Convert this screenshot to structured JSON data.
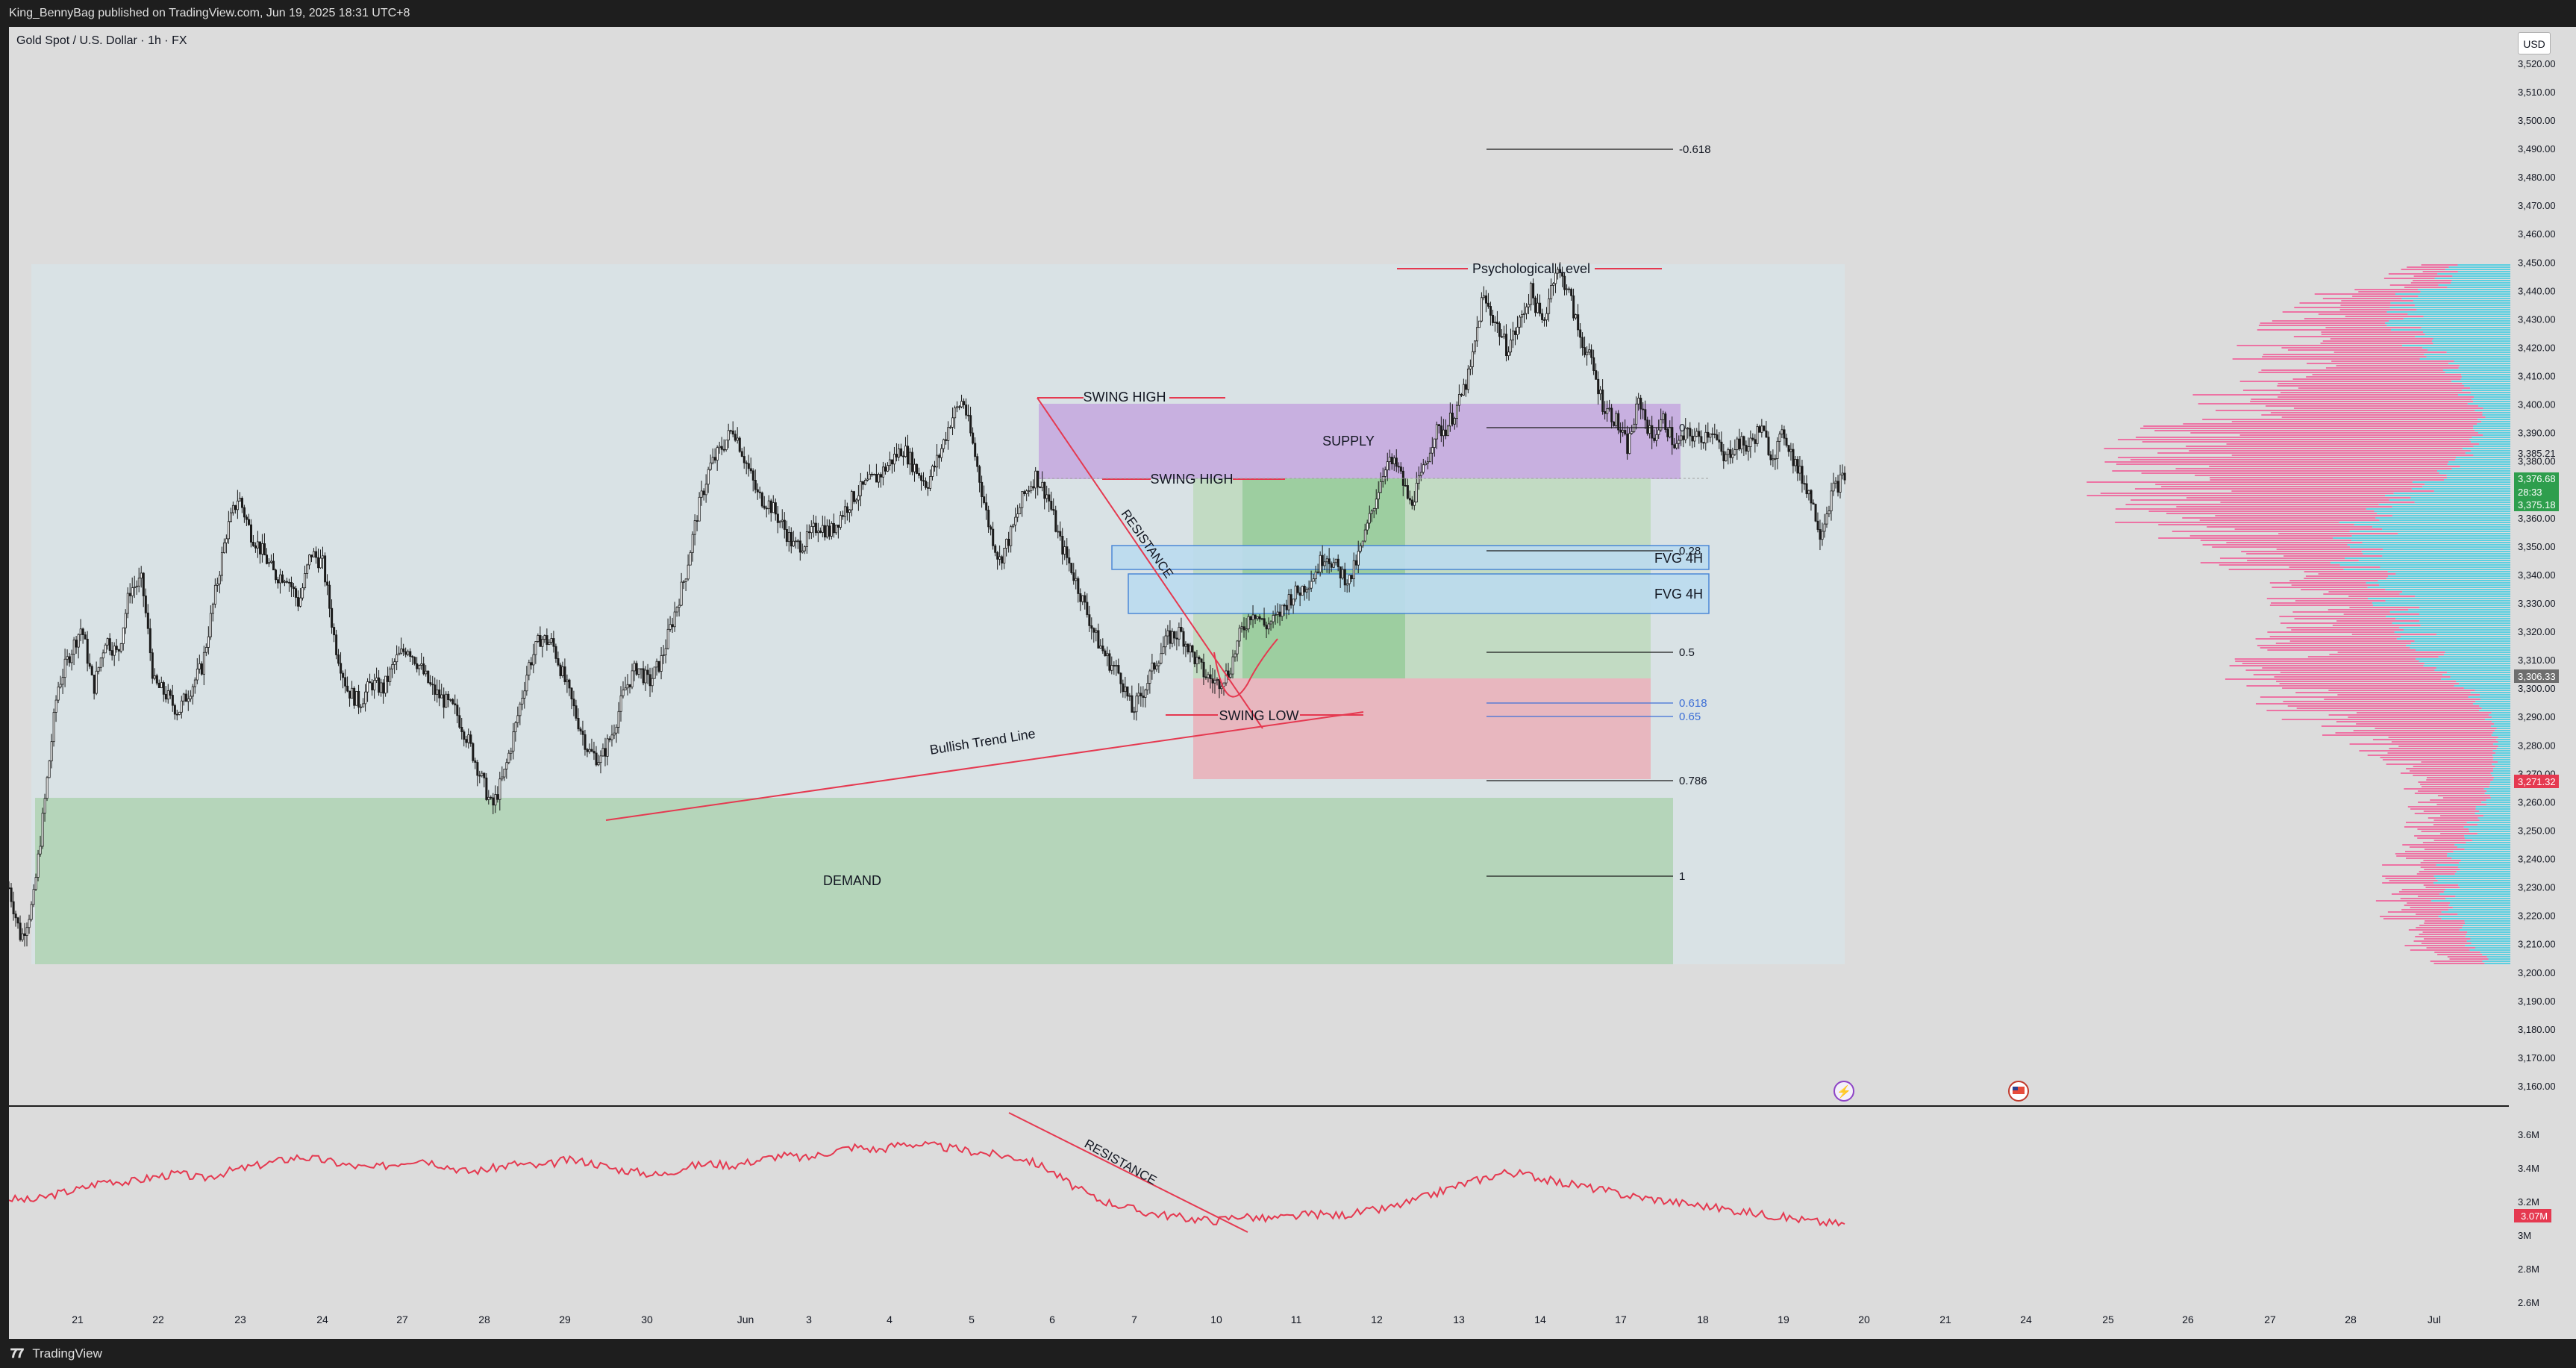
{
  "header": {
    "publish_line": "King_BennyBag published on TradingView.com, Jun 19, 2025 18:31 UTC+8",
    "symbol": "Gold Spot / U.S. Dollar · 1h · FX",
    "currency_button": "USD"
  },
  "footer": {
    "logo_mark": "𝟕𝟕",
    "logo_text": "TradingView"
  },
  "colors": {
    "candle": "#1a1a1a",
    "trend": "#e53950",
    "supply": "#c8b0e0",
    "demand": "#b5d5ba",
    "fvg_fill": "#bcdcef",
    "fvg_border": "#3d7fd6",
    "profile_pink": "#f0609a",
    "profile_cyan": "#45cde0",
    "fib_blue": "#3d6fd6",
    "obv_line": "#e53950",
    "price_badge": "#2e9e4d",
    "low_badge": "#e53950"
  },
  "chart_data": [
    {
      "type": "line",
      "subtype": "candlestick",
      "title": "Gold Spot / U.S. Dollar · 1h · FX",
      "ylim": [
        3155,
        3530
      ],
      "y_ticks": [
        "3,520.00",
        "3,510.00",
        "3,500.00",
        "3,490.00",
        "3,480.00",
        "3,470.00",
        "3,460.00",
        "3,450.00",
        "3,440.00",
        "3,430.00",
        "3,420.00",
        "3,410.00",
        "3,400.00",
        "3,390.00",
        "3,380.00",
        "3,370.00",
        "3,360.00",
        "3,350.00",
        "3,340.00",
        "3,330.00",
        "3,320.00",
        "3,310.00",
        "3,300.00",
        "3,290.00",
        "3,280.00",
        "3,270.00",
        "3,260.00",
        "3,250.00",
        "3,240.00",
        "3,230.00",
        "3,220.00",
        "3,210.00",
        "3,200.00",
        "3,190.00",
        "3,180.00",
        "3,170.00",
        "3,160.00"
      ],
      "x_ticks": [
        "21",
        "22",
        "23",
        "24",
        "27",
        "28",
        "29",
        "30",
        "Jun",
        "3",
        "4",
        "5",
        "6",
        "7",
        "10",
        "11",
        "12",
        "13",
        "14",
        "17",
        "18",
        "19",
        "20",
        "21",
        "24",
        "25",
        "26",
        "27",
        "28",
        "Jul"
      ],
      "price_path": [
        [
          0,
          3230
        ],
        [
          1,
          3212
        ],
        [
          2,
          3225
        ],
        [
          3,
          3262
        ],
        [
          4,
          3300
        ],
        [
          5,
          3312
        ],
        [
          6,
          3322
        ],
        [
          7,
          3300
        ],
        [
          8,
          3318
        ],
        [
          9,
          3312
        ],
        [
          10,
          3335
        ],
        [
          11,
          3338
        ],
        [
          12,
          3302
        ],
        [
          13,
          3298
        ],
        [
          14,
          3292
        ],
        [
          15,
          3300
        ],
        [
          16,
          3308
        ],
        [
          17,
          3332
        ],
        [
          18,
          3355
        ],
        [
          19,
          3368
        ],
        [
          20,
          3355
        ],
        [
          21,
          3348
        ],
        [
          22,
          3340
        ],
        [
          23,
          3340
        ],
        [
          24,
          3330
        ],
        [
          25,
          3348
        ],
        [
          26,
          3344
        ],
        [
          27,
          3316
        ],
        [
          28,
          3300
        ],
        [
          29,
          3295
        ],
        [
          30,
          3302
        ],
        [
          31,
          3300
        ],
        [
          32,
          3310
        ],
        [
          33,
          3315
        ],
        [
          34,
          3308
        ],
        [
          35,
          3300
        ],
        [
          36,
          3296
        ],
        [
          37,
          3292
        ],
        [
          38,
          3282
        ],
        [
          39,
          3270
        ],
        [
          40,
          3258
        ],
        [
          41,
          3270
        ],
        [
          42,
          3288
        ],
        [
          43,
          3308
        ],
        [
          44,
          3318
        ],
        [
          45,
          3316
        ],
        [
          46,
          3303
        ],
        [
          47,
          3290
        ],
        [
          48,
          3278
        ],
        [
          49,
          3275
        ],
        [
          50,
          3285
        ],
        [
          51,
          3300
        ],
        [
          52,
          3308
        ],
        [
          53,
          3302
        ],
        [
          54,
          3310
        ],
        [
          55,
          3325
        ],
        [
          56,
          3340
        ],
        [
          57,
          3362
        ],
        [
          58,
          3378
        ],
        [
          59,
          3385
        ],
        [
          60,
          3392
        ],
        [
          61,
          3380
        ],
        [
          62,
          3368
        ],
        [
          63,
          3365
        ],
        [
          64,
          3358
        ],
        [
          65,
          3350
        ],
        [
          66,
          3352
        ],
        [
          67,
          3358
        ],
        [
          68,
          3355
        ],
        [
          69,
          3362
        ],
        [
          70,
          3368
        ],
        [
          71,
          3372
        ],
        [
          72,
          3375
        ],
        [
          73,
          3380
        ],
        [
          74,
          3385
        ],
        [
          75,
          3378
        ],
        [
          76,
          3372
        ],
        [
          77,
          3382
        ],
        [
          78,
          3395
        ],
        [
          79,
          3402
        ],
        [
          80,
          3382
        ],
        [
          81,
          3360
        ],
        [
          82,
          3345
        ],
        [
          83,
          3355
        ],
        [
          84,
          3368
        ],
        [
          85,
          3375
        ],
        [
          86,
          3368
        ],
        [
          87,
          3352
        ],
        [
          88,
          3342
        ],
        [
          89,
          3330
        ],
        [
          90,
          3318
        ],
        [
          91,
          3310
        ],
        [
          92,
          3305
        ],
        [
          93,
          3292
        ],
        [
          94,
          3300
        ],
        [
          95,
          3310
        ],
        [
          96,
          3318
        ],
        [
          97,
          3320
        ],
        [
          98,
          3312
        ],
        [
          99,
          3305
        ],
        [
          100,
          3302
        ],
        [
          101,
          3306
        ],
        [
          102,
          3320
        ],
        [
          103,
          3328
        ],
        [
          104,
          3322
        ],
        [
          105,
          3325
        ],
        [
          106,
          3332
        ],
        [
          107,
          3335
        ],
        [
          108,
          3340
        ],
        [
          109,
          3348
        ],
        [
          110,
          3342
        ],
        [
          111,
          3338
        ],
        [
          112,
          3350
        ],
        [
          113,
          3365
        ],
        [
          114,
          3380
        ],
        [
          115,
          3378
        ],
        [
          116,
          3365
        ],
        [
          117,
          3375
        ],
        [
          118,
          3390
        ],
        [
          119,
          3392
        ],
        [
          120,
          3400
        ],
        [
          121,
          3412
        ],
        [
          122,
          3438
        ],
        [
          123,
          3430
        ],
        [
          124,
          3420
        ],
        [
          125,
          3428
        ],
        [
          126,
          3440
        ],
        [
          127,
          3428
        ],
        [
          128,
          3448
        ],
        [
          129,
          3442
        ],
        [
          130,
          3425
        ],
        [
          131,
          3415
        ],
        [
          132,
          3400
        ],
        [
          133,
          3395
        ],
        [
          134,
          3385
        ],
        [
          135,
          3402
        ],
        [
          136,
          3388
        ],
        [
          137,
          3395
        ],
        [
          138,
          3385
        ],
        [
          139,
          3390
        ],
        [
          140,
          3388
        ],
        [
          141,
          3392
        ],
        [
          142,
          3380
        ],
        [
          143,
          3387
        ],
        [
          144,
          3385
        ],
        [
          145,
          3392
        ],
        [
          146,
          3382
        ],
        [
          147,
          3390
        ],
        [
          148,
          3378
        ],
        [
          149,
          3370
        ],
        [
          150,
          3355
        ],
        [
          151,
          3370
        ],
        [
          152,
          3375
        ]
      ],
      "annotations": {
        "supply_label": "SUPPLY",
        "demand_label": "DEMAND",
        "swing_high_1": "SWING HIGH",
        "swing_high_2": "SWING HIGH",
        "swing_low": "SWING LOW",
        "resistance": "RESISTANCE",
        "trend_line": "Bullish Trend Line",
        "psych_level": "Psychological Level",
        "fvg_1": "FVG 4H",
        "fvg_2": "FVG 4H",
        "fib_levels": [
          "-0.618",
          "0",
          "0.28",
          "0.5",
          "0.618",
          "0.65",
          "0.786",
          "1"
        ]
      },
      "price_labels": {
        "level_a": "3,385.21",
        "current": "3,376.68",
        "countdown": "28:33",
        "current_green": "3,375.18",
        "level_b": "3,306.33",
        "level_low": "3,271.32"
      }
    },
    {
      "type": "line",
      "subtype": "volume-indicator",
      "ylim": [
        2.5,
        3.7
      ],
      "y_ticks": [
        "3.6M",
        "3.4M",
        "3.2M",
        "3M",
        "2.8M",
        "2.6M"
      ],
      "current_label": "3.07M",
      "annotation": "RESISTANCE",
      "values": [
        3.22,
        3.21,
        3.25,
        3.28,
        3.33,
        3.32,
        3.35,
        3.37,
        3.34,
        3.38,
        3.41,
        3.44,
        3.47,
        3.45,
        3.42,
        3.4,
        3.43,
        3.46,
        3.42,
        3.38,
        3.4,
        3.43,
        3.41,
        3.45,
        3.44,
        3.4,
        3.38,
        3.36,
        3.41,
        3.43,
        3.42,
        3.45,
        3.48,
        3.46,
        3.5,
        3.53,
        3.51,
        3.55,
        3.54,
        3.52,
        3.5,
        3.48,
        3.46,
        3.4,
        3.3,
        3.22,
        3.18,
        3.14,
        3.12,
        3.1,
        3.09,
        3.12,
        3.1,
        3.11,
        3.13,
        3.12,
        3.14,
        3.16,
        3.2,
        3.25,
        3.3,
        3.34,
        3.38,
        3.36,
        3.32,
        3.3,
        3.27,
        3.24,
        3.22,
        3.2,
        3.18,
        3.16,
        3.14,
        3.12,
        3.1,
        3.08,
        3.07
      ]
    }
  ]
}
